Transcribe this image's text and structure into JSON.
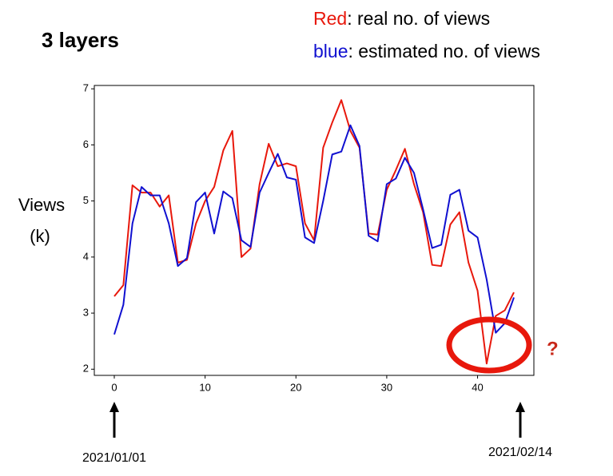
{
  "chart_data": {
    "type": "line",
    "title": "3 layers",
    "ylabel": [
      "Views",
      "(k)"
    ],
    "x": [
      0,
      1,
      2,
      3,
      4,
      5,
      6,
      7,
      8,
      9,
      10,
      11,
      12,
      13,
      14,
      15,
      16,
      17,
      18,
      19,
      20,
      21,
      22,
      23,
      24,
      25,
      26,
      27,
      28,
      29,
      30,
      31,
      32,
      33,
      34,
      35,
      36,
      37,
      38,
      39,
      40,
      41,
      42,
      43,
      44
    ],
    "series": [
      {
        "legend_key": "Red",
        "name": ": real no. of views",
        "color": "#e8180c",
        "values": [
          3.3,
          3.5,
          5.28,
          5.15,
          5.15,
          4.9,
          5.1,
          3.9,
          3.95,
          4.6,
          5.0,
          5.25,
          5.9,
          6.25,
          4.0,
          4.15,
          5.3,
          6.02,
          5.62,
          5.67,
          5.62,
          4.6,
          4.3,
          5.95,
          6.4,
          6.8,
          6.25,
          5.95,
          4.42,
          4.4,
          5.2,
          5.55,
          5.93,
          5.3,
          4.8,
          3.86,
          3.84,
          4.58,
          4.8,
          3.9,
          3.4,
          2.1,
          2.95,
          3.05,
          3.37
        ]
      },
      {
        "legend_key": "blue",
        "name": ": estimated no. of views",
        "color": "#1010d0",
        "values": [
          2.62,
          3.15,
          4.6,
          5.25,
          5.1,
          5.1,
          4.6,
          3.84,
          3.98,
          4.98,
          5.15,
          4.42,
          5.17,
          5.05,
          4.3,
          4.18,
          5.15,
          5.5,
          5.84,
          5.42,
          5.38,
          4.35,
          4.25,
          5.0,
          5.83,
          5.88,
          6.35,
          5.98,
          4.38,
          4.28,
          5.3,
          5.4,
          5.77,
          5.5,
          4.85,
          4.16,
          4.22,
          5.11,
          5.2,
          4.47,
          4.35,
          3.6,
          2.65,
          2.82,
          3.28
        ]
      }
    ],
    "xlim": [
      -2.2,
      46.2
    ],
    "xticks": [
      0,
      10,
      20,
      30,
      40
    ],
    "ylim": [
      1.89,
      7.06
    ],
    "yticks": [
      2,
      3,
      4,
      5,
      6,
      7
    ],
    "annotations": [
      "?",
      "2021/01/01",
      "2021/02/14"
    ]
  }
}
